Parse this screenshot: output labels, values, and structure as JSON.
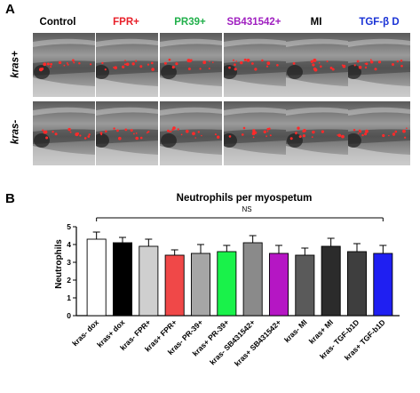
{
  "panel_a": {
    "letter": "A",
    "columns": [
      {
        "label": "Control",
        "color": "#000000"
      },
      {
        "label": "FPR+",
        "color": "#e8202a"
      },
      {
        "label": "PR39+",
        "color": "#22b04b"
      },
      {
        "label": "SB431542+",
        "color": "#a020c0"
      },
      {
        "label": "MI",
        "color": "#000000"
      },
      {
        "label": "TGF-β D",
        "color": "#1a33d6"
      }
    ],
    "rows": [
      {
        "label": "kras+"
      },
      {
        "label": "kras-"
      }
    ]
  },
  "panel_b": {
    "letter": "B"
  },
  "chart_data": {
    "type": "bar",
    "title": "Neutrophils per myospetum",
    "ylabel": "Neutrophils",
    "xlabel": "",
    "ylim": [
      0,
      5
    ],
    "yticks": [
      "0",
      "1",
      "2",
      "3",
      "4",
      "5"
    ],
    "annotation": "NS",
    "categories": [
      "kras- dox",
      "kras+ dox",
      "kras- FPR+",
      "kras+ FPR+",
      "kras- PR-39+",
      "kras+ PR-39+",
      "kras- SB431542+",
      "kras+ SB431542+",
      "kras- MI",
      "kras+ MI",
      "kras- TGF-b1D",
      "kras+ TGF-b1D"
    ],
    "values": [
      4.3,
      4.1,
      3.9,
      3.4,
      3.5,
      3.6,
      4.1,
      3.5,
      3.4,
      3.9,
      3.6,
      3.5
    ],
    "errors": [
      0.4,
      0.3,
      0.4,
      0.3,
      0.5,
      0.35,
      0.4,
      0.45,
      0.4,
      0.45,
      0.45,
      0.45
    ],
    "colors": [
      "#ffffff",
      "#000000",
      "#cfcfcf",
      "#f04848",
      "#a6a6a6",
      "#19f24a",
      "#8a8a8a",
      "#b516c4",
      "#5a5a5a",
      "#2b2b2b",
      "#3e3e3e",
      "#1f1ff2"
    ],
    "legend": "none",
    "grid": false
  }
}
